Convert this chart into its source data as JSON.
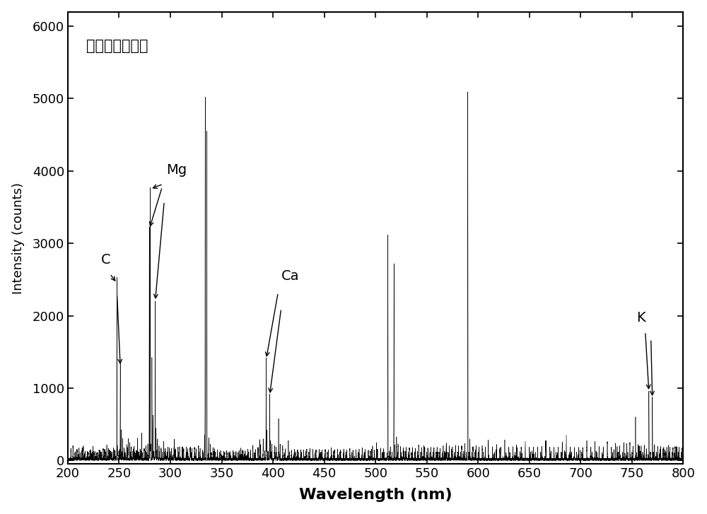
{
  "title": "金黄色葡萄球菌",
  "xlabel": "Wavelength (nm)",
  "ylabel": "Intensity (counts)",
  "xlim": [
    200,
    800
  ],
  "ylim": [
    -50,
    6200
  ],
  "yticks": [
    0,
    1000,
    2000,
    3000,
    4000,
    5000,
    6000
  ],
  "xticks": [
    200,
    250,
    300,
    350,
    400,
    450,
    500,
    550,
    600,
    650,
    700,
    750,
    800
  ],
  "background_color": "#ffffff",
  "line_color": "#000000",
  "peaks": [
    [
      207.0,
      80
    ],
    [
      210.5,
      60
    ],
    [
      212.0,
      80
    ],
    [
      214.0,
      100
    ],
    [
      216.5,
      70
    ],
    [
      219.0,
      80
    ],
    [
      221.5,
      90
    ],
    [
      223.0,
      70
    ],
    [
      225.5,
      100
    ],
    [
      228.0,
      80
    ],
    [
      230.5,
      120
    ],
    [
      232.0,
      90
    ],
    [
      234.5,
      150
    ],
    [
      236.0,
      130
    ],
    [
      238.0,
      180
    ],
    [
      240.5,
      120
    ],
    [
      242.0,
      100
    ],
    [
      244.5,
      130
    ],
    [
      246.0,
      110
    ],
    [
      247.9,
      2450
    ],
    [
      248.5,
      200
    ],
    [
      249.8,
      100
    ],
    [
      251.2,
      1300
    ],
    [
      252.0,
      400
    ],
    [
      253.5,
      280
    ],
    [
      255.0,
      150
    ],
    [
      257.5,
      200
    ],
    [
      259.0,
      280
    ],
    [
      260.5,
      220
    ],
    [
      262.0,
      160
    ],
    [
      264.0,
      140
    ],
    [
      266.5,
      120
    ],
    [
      268.0,
      150
    ],
    [
      270.5,
      130
    ],
    [
      272.0,
      160
    ],
    [
      274.5,
      140
    ],
    [
      276.0,
      180
    ],
    [
      278.0,
      200
    ],
    [
      279.5,
      3200
    ],
    [
      280.3,
      3750
    ],
    [
      282.0,
      1400
    ],
    [
      283.0,
      600
    ],
    [
      285.2,
      2200
    ],
    [
      286.0,
      400
    ],
    [
      287.5,
      280
    ],
    [
      289.0,
      180
    ],
    [
      291.0,
      150
    ],
    [
      293.5,
      160
    ],
    [
      295.0,
      140
    ],
    [
      297.5,
      160
    ],
    [
      299.0,
      150
    ],
    [
      301.0,
      140
    ],
    [
      303.5,
      160
    ],
    [
      305.0,
      140
    ],
    [
      307.5,
      160
    ],
    [
      309.0,
      140
    ],
    [
      311.5,
      160
    ],
    [
      313.0,
      140
    ],
    [
      315.5,
      160
    ],
    [
      317.0,
      140
    ],
    [
      319.5,
      160
    ],
    [
      321.0,
      140
    ],
    [
      323.5,
      160
    ],
    [
      325.0,
      140
    ],
    [
      327.5,
      160
    ],
    [
      329.0,
      140
    ],
    [
      331.5,
      120
    ],
    [
      334.0,
      5000
    ],
    [
      335.5,
      4550
    ],
    [
      337.5,
      280
    ],
    [
      339.0,
      200
    ],
    [
      341.5,
      160
    ],
    [
      343.0,
      140
    ],
    [
      346.0,
      120
    ],
    [
      349.0,
      110
    ],
    [
      352.0,
      100
    ],
    [
      355.0,
      110
    ],
    [
      358.0,
      100
    ],
    [
      361.0,
      110
    ],
    [
      364.0,
      100
    ],
    [
      367.0,
      110
    ],
    [
      370.0,
      120
    ],
    [
      373.0,
      110
    ],
    [
      375.5,
      130
    ],
    [
      378.0,
      120
    ],
    [
      380.5,
      140
    ],
    [
      383.0,
      130
    ],
    [
      385.5,
      160
    ],
    [
      388.0,
      200
    ],
    [
      390.5,
      280
    ],
    [
      393.4,
      1400
    ],
    [
      394.0,
      300
    ],
    [
      396.8,
      900
    ],
    [
      397.5,
      250
    ],
    [
      399.0,
      200
    ],
    [
      401.5,
      180
    ],
    [
      403.0,
      160
    ],
    [
      405.5,
      560
    ],
    [
      407.0,
      200
    ],
    [
      409.5,
      160
    ],
    [
      412.0,
      140
    ],
    [
      415.0,
      130
    ],
    [
      418.0,
      120
    ],
    [
      421.0,
      130
    ],
    [
      424.0,
      120
    ],
    [
      427.0,
      130
    ],
    [
      430.0,
      120
    ],
    [
      433.0,
      130
    ],
    [
      436.0,
      120
    ],
    [
      439.0,
      130
    ],
    [
      442.0,
      120
    ],
    [
      445.0,
      130
    ],
    [
      448.0,
      120
    ],
    [
      451.0,
      130
    ],
    [
      454.0,
      120
    ],
    [
      457.0,
      130
    ],
    [
      460.0,
      120
    ],
    [
      463.0,
      130
    ],
    [
      466.0,
      120
    ],
    [
      469.0,
      130
    ],
    [
      472.0,
      120
    ],
    [
      475.0,
      130
    ],
    [
      478.0,
      120
    ],
    [
      481.0,
      130
    ],
    [
      484.0,
      120
    ],
    [
      487.0,
      150
    ],
    [
      490.0,
      130
    ],
    [
      493.0,
      120
    ],
    [
      496.0,
      130
    ],
    [
      499.0,
      120
    ],
    [
      502.0,
      130
    ],
    [
      505.0,
      120
    ],
    [
      508.0,
      140
    ],
    [
      512.0,
      3050
    ],
    [
      514.5,
      160
    ],
    [
      518.0,
      2700
    ],
    [
      520.5,
      300
    ],
    [
      522.0,
      200
    ],
    [
      524.5,
      160
    ],
    [
      527.0,
      150
    ],
    [
      530.0,
      160
    ],
    [
      533.0,
      150
    ],
    [
      536.0,
      160
    ],
    [
      539.0,
      150
    ],
    [
      542.0,
      160
    ],
    [
      545.0,
      150
    ],
    [
      548.0,
      160
    ],
    [
      551.0,
      150
    ],
    [
      554.0,
      160
    ],
    [
      557.0,
      150
    ],
    [
      560.0,
      160
    ],
    [
      563.0,
      150
    ],
    [
      566.0,
      180
    ],
    [
      569.0,
      200
    ],
    [
      572.0,
      180
    ],
    [
      575.0,
      160
    ],
    [
      578.0,
      180
    ],
    [
      581.0,
      160
    ],
    [
      584.0,
      180
    ],
    [
      587.0,
      160
    ],
    [
      589.9,
      5050
    ],
    [
      592.0,
      280
    ],
    [
      595.0,
      160
    ],
    [
      598.0,
      180
    ],
    [
      601.0,
      160
    ],
    [
      604.0,
      180
    ],
    [
      607.0,
      160
    ],
    [
      610.0,
      170
    ],
    [
      614.0,
      160
    ],
    [
      618.0,
      170
    ],
    [
      622.0,
      160
    ],
    [
      626.0,
      170
    ],
    [
      630.0,
      160
    ],
    [
      634.0,
      170
    ],
    [
      638.0,
      160
    ],
    [
      642.0,
      160
    ],
    [
      646.0,
      160
    ],
    [
      650.0,
      160
    ],
    [
      654.0,
      160
    ],
    [
      658.0,
      160
    ],
    [
      662.0,
      160
    ],
    [
      666.0,
      160
    ],
    [
      670.0,
      160
    ],
    [
      674.0,
      160
    ],
    [
      678.0,
      160
    ],
    [
      682.0,
      160
    ],
    [
      686.0,
      160
    ],
    [
      690.0,
      160
    ],
    [
      694.0,
      160
    ],
    [
      698.0,
      160
    ],
    [
      702.0,
      160
    ],
    [
      706.0,
      160
    ],
    [
      710.0,
      160
    ],
    [
      714.0,
      160
    ],
    [
      718.0,
      160
    ],
    [
      722.0,
      160
    ],
    [
      726.0,
      160
    ],
    [
      730.0,
      160
    ],
    [
      734.0,
      160
    ],
    [
      738.0,
      180
    ],
    [
      742.0,
      220
    ],
    [
      745.0,
      180
    ],
    [
      748.0,
      200
    ],
    [
      751.0,
      180
    ],
    [
      753.5,
      580
    ],
    [
      756.0,
      200
    ],
    [
      759.0,
      180
    ],
    [
      762.0,
      160
    ],
    [
      766.5,
      950
    ],
    [
      769.9,
      860
    ],
    [
      772.0,
      200
    ],
    [
      775.0,
      180
    ],
    [
      778.0,
      160
    ],
    [
      781.0,
      160
    ],
    [
      784.0,
      160
    ],
    [
      787.0,
      160
    ],
    [
      790.0,
      160
    ],
    [
      793.0,
      160
    ],
    [
      796.0,
      160
    ],
    [
      799.0,
      150
    ]
  ],
  "noise_peaks": [
    [
      203.0,
      120
    ],
    [
      205.0,
      180
    ],
    [
      207.5,
      100
    ],
    [
      209.0,
      130
    ],
    [
      211.0,
      90
    ],
    [
      213.5,
      110
    ],
    [
      215.0,
      150
    ],
    [
      217.0,
      100
    ],
    [
      220.0,
      90
    ],
    [
      222.5,
      110
    ],
    [
      224.0,
      90
    ],
    [
      226.5,
      100
    ],
    [
      229.0,
      90
    ],
    [
      231.5,
      110
    ],
    [
      233.0,
      90
    ],
    [
      235.5,
      120
    ],
    [
      237.0,
      100
    ],
    [
      239.5,
      150
    ],
    [
      241.0,
      120
    ],
    [
      243.0,
      100
    ],
    [
      245.5,
      120
    ],
    [
      248.0,
      90
    ],
    [
      250.5,
      120
    ],
    [
      253.0,
      100
    ],
    [
      256.0,
      90
    ],
    [
      258.5,
      110
    ],
    [
      261.0,
      90
    ],
    [
      263.5,
      100
    ],
    [
      265.0,
      90
    ],
    [
      267.5,
      110
    ],
    [
      269.0,
      90
    ],
    [
      271.5,
      100
    ],
    [
      273.0,
      90
    ],
    [
      275.5,
      100
    ],
    [
      277.0,
      90
    ],
    [
      280.8,
      200
    ],
    [
      283.5,
      100
    ],
    [
      285.8,
      120
    ],
    [
      287.0,
      90
    ],
    [
      289.5,
      100
    ],
    [
      292.0,
      90
    ],
    [
      294.5,
      100
    ],
    [
      297.0,
      90
    ],
    [
      300.0,
      100
    ],
    [
      304.0,
      90
    ],
    [
      308.0,
      90
    ],
    [
      312.0,
      90
    ],
    [
      316.0,
      90
    ],
    [
      320.0,
      90
    ],
    [
      324.0,
      90
    ],
    [
      328.0,
      90
    ],
    [
      332.0,
      90
    ],
    [
      340.0,
      90
    ],
    [
      344.0,
      90
    ],
    [
      348.0,
      90
    ],
    [
      353.0,
      90
    ],
    [
      357.0,
      90
    ],
    [
      362.0,
      90
    ],
    [
      366.0,
      90
    ],
    [
      371.0,
      90
    ],
    [
      376.0,
      90
    ],
    [
      382.0,
      90
    ],
    [
      387.0,
      100
    ],
    [
      392.0,
      110
    ],
    [
      395.5,
      100
    ],
    [
      398.0,
      90
    ],
    [
      402.0,
      90
    ],
    [
      406.0,
      90
    ],
    [
      411.0,
      90
    ],
    [
      416.0,
      90
    ],
    [
      422.0,
      90
    ],
    [
      428.0,
      90
    ],
    [
      435.0,
      90
    ],
    [
      441.0,
      90
    ],
    [
      447.0,
      90
    ],
    [
      453.0,
      90
    ],
    [
      459.0,
      90
    ],
    [
      465.0,
      90
    ],
    [
      471.0,
      90
    ],
    [
      477.0,
      90
    ],
    [
      483.0,
      90
    ],
    [
      489.0,
      90
    ],
    [
      495.0,
      90
    ],
    [
      501.0,
      90
    ],
    [
      507.0,
      90
    ],
    [
      513.5,
      90
    ],
    [
      516.0,
      90
    ],
    [
      519.0,
      200
    ],
    [
      521.5,
      90
    ],
    [
      525.0,
      90
    ],
    [
      528.0,
      90
    ],
    [
      532.0,
      90
    ],
    [
      535.0,
      90
    ],
    [
      538.0,
      90
    ],
    [
      541.0,
      90
    ],
    [
      544.0,
      90
    ],
    [
      547.0,
      90
    ],
    [
      550.0,
      90
    ],
    [
      553.0,
      90
    ],
    [
      556.0,
      90
    ],
    [
      559.0,
      90
    ],
    [
      562.0,
      90
    ],
    [
      565.0,
      90
    ],
    [
      568.0,
      90
    ],
    [
      571.0,
      90
    ],
    [
      574.0,
      90
    ],
    [
      577.0,
      90
    ],
    [
      580.0,
      90
    ],
    [
      583.0,
      90
    ],
    [
      586.0,
      90
    ],
    [
      588.5,
      90
    ],
    [
      591.0,
      90
    ],
    [
      594.0,
      90
    ],
    [
      597.0,
      90
    ],
    [
      600.0,
      90
    ],
    [
      605.0,
      90
    ],
    [
      610.0,
      90
    ],
    [
      616.0,
      90
    ],
    [
      621.0,
      90
    ],
    [
      626.0,
      90
    ],
    [
      631.0,
      90
    ],
    [
      636.0,
      90
    ],
    [
      641.0,
      90
    ],
    [
      646.0,
      90
    ],
    [
      651.0,
      90
    ],
    [
      656.0,
      90
    ],
    [
      661.0,
      90
    ],
    [
      666.0,
      90
    ],
    [
      671.0,
      90
    ],
    [
      676.0,
      90
    ],
    [
      681.0,
      90
    ],
    [
      686.0,
      90
    ],
    [
      691.0,
      90
    ],
    [
      696.0,
      90
    ],
    [
      701.0,
      90
    ],
    [
      706.0,
      90
    ],
    [
      711.0,
      90
    ],
    [
      716.0,
      90
    ],
    [
      721.0,
      90
    ],
    [
      726.0,
      90
    ],
    [
      731.0,
      90
    ],
    [
      736.0,
      90
    ],
    [
      741.0,
      90
    ],
    [
      746.0,
      90
    ],
    [
      750.0,
      90
    ],
    [
      754.5,
      90
    ],
    [
      757.0,
      90
    ],
    [
      760.5,
      90
    ],
    [
      764.0,
      90
    ],
    [
      768.0,
      90
    ],
    [
      771.0,
      90
    ],
    [
      774.0,
      90
    ],
    [
      777.0,
      90
    ],
    [
      780.0,
      90
    ],
    [
      783.0,
      90
    ],
    [
      786.0,
      90
    ],
    [
      789.0,
      90
    ],
    [
      792.0,
      90
    ],
    [
      795.0,
      90
    ],
    [
      798.0,
      90
    ]
  ]
}
